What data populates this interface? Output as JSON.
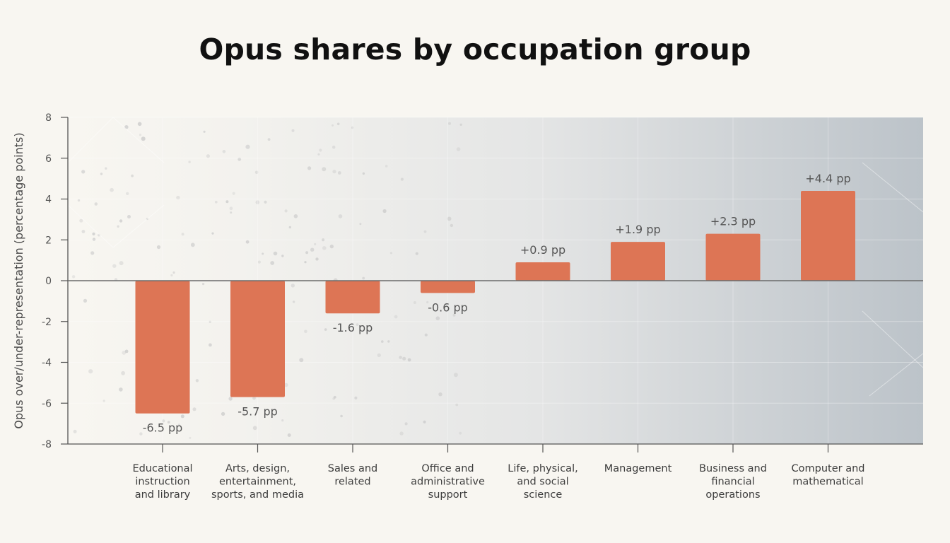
{
  "title": "Opus shares by occupation group",
  "chart_data": {
    "type": "bar",
    "title": "Opus shares by occupation group",
    "xlabel": "",
    "ylabel": "Opus over/under-representation (percentage points)",
    "ylim": [
      -8,
      8
    ],
    "yticks": [
      8,
      6,
      4,
      2,
      0,
      -2,
      -4,
      -6,
      -8
    ],
    "ytick_labels": [
      "8",
      "6",
      "4",
      "2",
      "0",
      "-2",
      "-4",
      "-6",
      "-8"
    ],
    "categories": [
      [
        "Educational",
        "instruction",
        "and library"
      ],
      [
        "Arts, design,",
        "entertainment,",
        "sports, and media"
      ],
      [
        "Sales and",
        "related"
      ],
      [
        "Office and",
        "administrative",
        "support"
      ],
      [
        "Life, physical,",
        "and social",
        "science"
      ],
      [
        "Management"
      ],
      [
        "Business and",
        "financial",
        "operations"
      ],
      [
        "Computer and",
        "mathematical"
      ]
    ],
    "values": [
      -6.5,
      -5.7,
      -1.6,
      -0.6,
      0.9,
      1.9,
      2.3,
      4.4
    ],
    "data_labels": [
      "-6.5 pp",
      "-5.7 pp",
      "-1.6 pp",
      "-0.6 pp",
      "+0.9 pp",
      "+1.9 pp",
      "+2.3 pp",
      "+4.4 pp"
    ],
    "bar_color": "#dd7555",
    "grid": true,
    "legend": "none"
  }
}
